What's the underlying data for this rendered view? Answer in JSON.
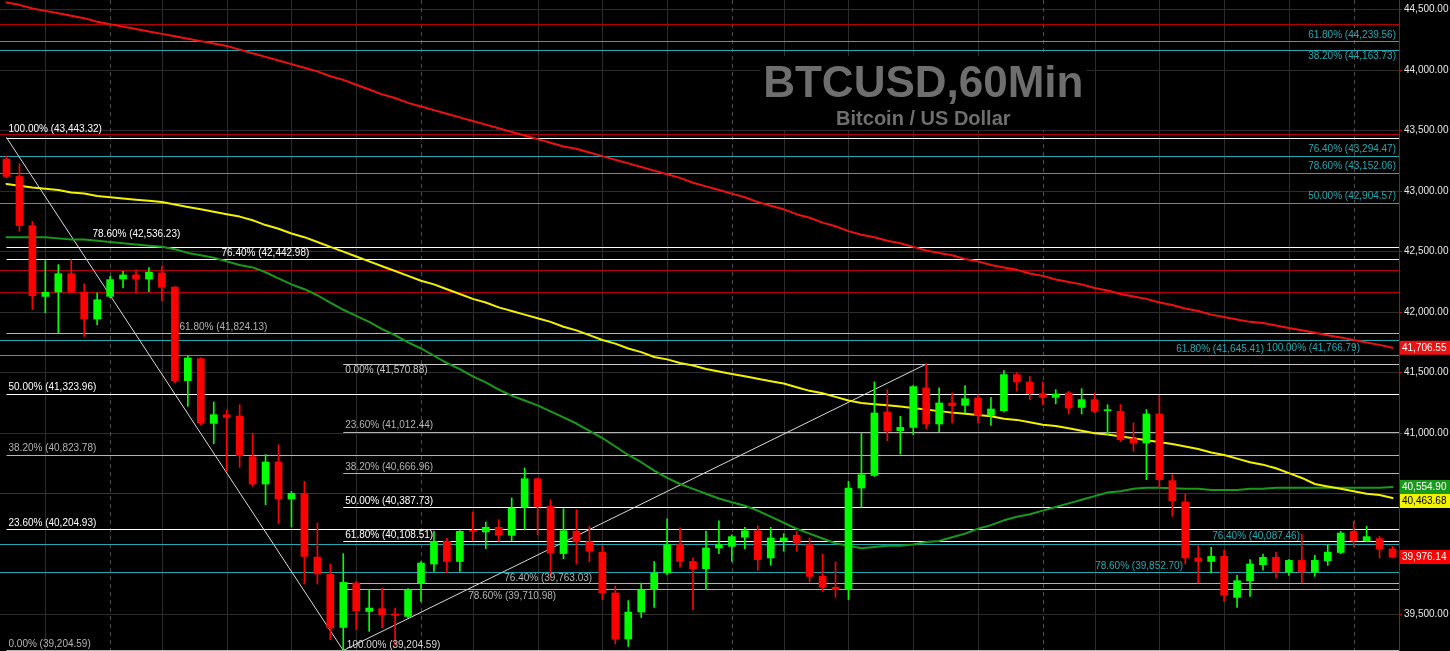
{
  "chart_data": {
    "type": "candlestick",
    "title": "BTCUSD,60Min",
    "subtitle": "Bitcoin / US Dollar",
    "categories": [
      null,
      null,
      null,
      null,
      null,
      null,
      null,
      null,
      null,
      null,
      null,
      null,
      null,
      null,
      null,
      null,
      null,
      null,
      null,
      null,
      null,
      null,
      null,
      null,
      null,
      null,
      null,
      null,
      null,
      null,
      null,
      null,
      null,
      null,
      null,
      null,
      null,
      null,
      null,
      null,
      null,
      null,
      null,
      null,
      null,
      null,
      null,
      null,
      null,
      null,
      null,
      null,
      null,
      null,
      null,
      null,
      null,
      null,
      null,
      null,
      null,
      null,
      null,
      null,
      null,
      null,
      null,
      null,
      null,
      null,
      null,
      null,
      null,
      null,
      null,
      null,
      null,
      null,
      null,
      null,
      null,
      null,
      null,
      null,
      null,
      null,
      null,
      null,
      null,
      null,
      null,
      null,
      null,
      null,
      null,
      null,
      null,
      null,
      null,
      null,
      null,
      null,
      null,
      null,
      null,
      null,
      null,
      null
    ],
    "ohlc": [
      [
        43266,
        43290,
        43110,
        43122
      ],
      [
        43122,
        43227,
        42668,
        42715
      ],
      [
        42715,
        42751,
        42021,
        42136
      ],
      [
        42131,
        42426,
        41996,
        42164
      ],
      [
        42167,
        42393,
        41830,
        42318
      ],
      [
        42318,
        42434,
        42161,
        42167
      ],
      [
        42164,
        42233,
        41800,
        41944
      ],
      [
        41944,
        42159,
        41897,
        42103
      ],
      [
        42131,
        42296,
        42120,
        42269
      ],
      [
        42274,
        42337,
        42200,
        42308
      ],
      [
        42308,
        42351,
        42164,
        42274
      ],
      [
        42274,
        42368,
        42170,
        42332
      ],
      [
        42324,
        42379,
        42095,
        42208
      ],
      [
        42208,
        42211,
        41418,
        41434
      ],
      [
        41434,
        41641,
        41222,
        41622
      ],
      [
        41616,
        41624,
        41070,
        41084
      ],
      [
        41081,
        41258,
        40913,
        41153
      ],
      [
        41153,
        41194,
        40685,
        41131
      ],
      [
        41142,
        41236,
        40718,
        40814
      ],
      [
        40806,
        41000,
        40561,
        40580
      ],
      [
        40580,
        40823,
        40409,
        40762
      ],
      [
        40762,
        40905,
        40252,
        40456
      ],
      [
        40456,
        40519,
        40225,
        40503
      ],
      [
        40503,
        40602,
        39754,
        39982
      ],
      [
        39976,
        40258,
        39754,
        39837
      ],
      [
        39834,
        39919,
        39294,
        39390
      ],
      [
        39395,
        40005,
        39204.59,
        39767
      ],
      [
        39762,
        39775,
        39376,
        39533
      ],
      [
        39527,
        39707,
        39362,
        39555
      ],
      [
        39550,
        39721,
        39390,
        39500
      ],
      [
        39506,
        39555,
        39252,
        39494
      ],
      [
        39486,
        39715,
        39475,
        39707
      ],
      [
        39762,
        39940,
        39610,
        39927
      ],
      [
        39919,
        40189,
        39858,
        40106
      ],
      [
        40106,
        40134,
        39845,
        39940
      ],
      [
        39940,
        40195,
        39858,
        40189
      ],
      [
        40197,
        40349,
        40112,
        40189
      ],
      [
        40184,
        40266,
        40046,
        40222
      ],
      [
        40222,
        40285,
        40106,
        40156
      ],
      [
        40156,
        40465,
        40112,
        40382
      ],
      [
        40387,
        40713,
        40203,
        40624
      ],
      [
        40624,
        40630,
        40161,
        40395
      ],
      [
        40395,
        40451,
        39804,
        40010
      ],
      [
        40005,
        40376,
        39963,
        40194
      ],
      [
        40189,
        40368,
        39919,
        40104
      ],
      [
        40104,
        40230,
        39936,
        40024
      ],
      [
        40017,
        40071,
        39624,
        39680
      ],
      [
        39680,
        39735,
        39258,
        39299
      ],
      [
        39299,
        39616,
        39238,
        39522
      ],
      [
        39522,
        39762,
        39477,
        39704
      ],
      [
        39707,
        39940,
        39560,
        39845
      ],
      [
        39845,
        40293,
        39831,
        40079
      ],
      [
        40079,
        40217,
        39892,
        39940
      ],
      [
        39940,
        39969,
        39541,
        39880
      ],
      [
        39880,
        40189,
        39707,
        40051
      ],
      [
        40051,
        40276,
        40005,
        40079
      ],
      [
        40065,
        40161,
        39940,
        40145
      ],
      [
        40140,
        40222,
        40046,
        40194
      ],
      [
        40194,
        40236,
        39867,
        39955
      ],
      [
        39969,
        40222,
        39907,
        40134
      ],
      [
        40112,
        40170,
        40024,
        40134
      ],
      [
        40156,
        40189,
        40024,
        40092
      ],
      [
        40079,
        40134,
        39771,
        39817
      ],
      [
        39817,
        40002,
        39693,
        39726
      ],
      [
        39726,
        39936,
        39643,
        39707
      ],
      [
        39707,
        40602,
        39624,
        40547
      ],
      [
        40547,
        40997,
        40387,
        40657
      ],
      [
        40651,
        41424,
        40643,
        41167
      ],
      [
        41175,
        41360,
        40938,
        41021
      ],
      [
        41021,
        41139,
        40828,
        41048
      ],
      [
        41048,
        41393,
        40988,
        41385
      ],
      [
        41374,
        41570.88,
        41037,
        41076
      ],
      [
        41076,
        41374,
        41010,
        41250
      ],
      [
        41250,
        41333,
        41084,
        41227
      ],
      [
        41230,
        41393,
        41167,
        41285
      ],
      [
        41291,
        41318,
        41084,
        41147
      ],
      [
        41147,
        41296,
        41065,
        41200
      ],
      [
        41186,
        41517,
        41175,
        41484
      ],
      [
        41484,
        41498,
        41349,
        41423
      ],
      [
        41423,
        41470,
        41277,
        41327
      ],
      [
        41327,
        41423,
        41236,
        41296
      ],
      [
        41296,
        41360,
        41242,
        41324
      ],
      [
        41333,
        41346,
        41159,
        41208
      ],
      [
        41213,
        41368,
        41159,
        41277
      ],
      [
        41277,
        41333,
        41167,
        41180
      ],
      [
        41186,
        41236,
        40988,
        41192
      ],
      [
        41180,
        41236,
        40930,
        40946
      ],
      [
        40955,
        41084,
        40850,
        40919
      ],
      [
        40919,
        41196,
        40616,
        41159
      ],
      [
        41159,
        41313,
        40547,
        40616
      ],
      [
        40608,
        40657,
        40313,
        40442
      ],
      [
        40432,
        40498,
        39919,
        39969
      ],
      [
        39969,
        40071,
        39762,
        39940
      ],
      [
        39940,
        40057,
        39845,
        39982
      ],
      [
        39982,
        40032,
        39610,
        39660
      ],
      [
        39643,
        39825,
        39560,
        39781
      ],
      [
        39781,
        39955,
        39652,
        39919
      ],
      [
        39913,
        40002,
        39867,
        39974
      ],
      [
        39974,
        40017,
        39804,
        39853
      ],
      [
        39853,
        39955,
        39825,
        39949
      ],
      [
        39949,
        40165,
        39762,
        39853
      ],
      [
        39853,
        39991,
        39817,
        39949
      ],
      [
        39946,
        40079,
        39907,
        40017
      ],
      [
        40014,
        40189,
        40005,
        40175
      ],
      [
        40189,
        40271,
        40065,
        40112
      ],
      [
        40112,
        40230,
        40106,
        40145
      ],
      [
        40128,
        40147,
        39969,
        40043
      ],
      [
        40043,
        40065,
        39969,
        39976.14
      ]
    ],
    "colors": [
      "#ff0000",
      "#ff0000",
      "#ff0000",
      "#00ff00",
      "#00ff00",
      "#ff0000",
      "#ff0000",
      "#00ff00",
      "#00ff00",
      "#00ff00",
      "#ff0000",
      "#00ff00",
      "#ff0000",
      "#ff0000",
      "#00ff00",
      "#ff0000",
      "#00ff00",
      "#ff0000",
      "#ff0000",
      "#ff0000",
      "#00ff00",
      "#ff0000",
      "#00ff00",
      "#ff0000",
      "#ff0000",
      "#ff0000",
      "#00ff00",
      "#ff0000",
      "#00ff00",
      "#ff0000",
      "#ff0000",
      "#00ff00",
      "#00ff00",
      "#00ff00",
      "#ff0000",
      "#00ff00",
      "#ff0000",
      "#00ff00",
      "#ff0000",
      "#00ff00",
      "#00ff00",
      "#ff0000",
      "#ff0000",
      "#00ff00",
      "#ff0000",
      "#ff0000",
      "#ff0000",
      "#ff0000",
      "#00ff00",
      "#00ff00",
      "#00ff00",
      "#00ff00",
      "#ff0000",
      "#ff0000",
      "#00ff00",
      "#00ff00",
      "#00ff00",
      "#00ff00",
      "#ff0000",
      "#00ff00",
      "#00ff00",
      "#ff0000",
      "#ff0000",
      "#ff0000",
      "#ff0000",
      "#00ff00",
      "#00ff00",
      "#00ff00",
      "#ff0000",
      "#00ff00",
      "#00ff00",
      "#ff0000",
      "#00ff00",
      "#ff0000",
      "#00ff00",
      "#ff0000",
      "#00ff00",
      "#00ff00",
      "#ff0000",
      "#ff0000",
      "#ff0000",
      "#00ff00",
      "#ff0000",
      "#00ff00",
      "#ff0000",
      "#00ff00",
      "#ff0000",
      "#ff0000",
      "#00ff00",
      "#ff0000",
      "#ff0000",
      "#ff0000",
      "#ff0000",
      "#00ff00",
      "#ff0000",
      "#00ff00",
      "#00ff00",
      "#00ff00",
      "#ff0000",
      "#00ff00",
      "#ff0000",
      "#00ff00",
      "#00ff00",
      "#00ff00",
      "#ff0000",
      "#00ff00",
      "#ff0000",
      "#ff0000"
    ],
    "value_labels": [
      null,
      null,
      null,
      null,
      null,
      null,
      null,
      null,
      null,
      null,
      null,
      null,
      null,
      null,
      null,
      null,
      null,
      null,
      null,
      null,
      null,
      null,
      null,
      null,
      null,
      null,
      null,
      null,
      null,
      null,
      null,
      null,
      null,
      null,
      null,
      null,
      null,
      null,
      null,
      null,
      null,
      null,
      null,
      null,
      null,
      null,
      null,
      null,
      null,
      null,
      null,
      null,
      null,
      null,
      null,
      null,
      null,
      null,
      null,
      null,
      null,
      null,
      null,
      null,
      null,
      null,
      null,
      null,
      null,
      null,
      null,
      null,
      null,
      null,
      null,
      null,
      null,
      null,
      null,
      null,
      null,
      null,
      null,
      null,
      null,
      null,
      null,
      null,
      null,
      null,
      null,
      null,
      null,
      null,
      null,
      null,
      null,
      null,
      null,
      null,
      null,
      null,
      null,
      null,
      null,
      null,
      null,
      "39,976.14"
    ],
    "series": [
      {
        "type": "line",
        "color": "#ee1111",
        "values": [
          44560,
          44540,
          44510,
          44490,
          44470,
          44450,
          44430,
          44400,
          44380,
          44360,
          44340,
          44320,
          44300,
          44280,
          44260,
          44240,
          44220,
          44200,
          44170,
          44140,
          44110,
          44080,
          44050,
          44020,
          43990,
          43950,
          43920,
          43880,
          43840,
          43800,
          43770,
          43730,
          43700,
          43670,
          43640,
          43610,
          43580,
          43550,
          43520,
          43490,
          43460,
          43430,
          43400,
          43370,
          43350,
          43320,
          43290,
          43260,
          43230,
          43200,
          43170,
          43140,
          43110,
          43070,
          43040,
          43010,
          42980,
          42950,
          42910,
          42880,
          42850,
          42810,
          42780,
          42740,
          42710,
          42670,
          42640,
          42620,
          42590,
          42570,
          42540,
          42510,
          42490,
          42470,
          42440,
          42420,
          42390,
          42370,
          42350,
          42320,
          42300,
          42270,
          42250,
          42230,
          42200,
          42180,
          42150,
          42130,
          42110,
          42080,
          42060,
          42030,
          42010,
          41980,
          41960,
          41940,
          41920,
          41910,
          41890,
          41870,
          41850,
          41830,
          41810,
          41790,
          41770,
          41750,
          41730,
          41706.55
        ],
        "value_labels": [
          null,
          null,
          null,
          null,
          null,
          null,
          null,
          null,
          null,
          null,
          null,
          null,
          null,
          null,
          null,
          null,
          null,
          null,
          null,
          null,
          null,
          null,
          null,
          null,
          null,
          null,
          null,
          null,
          null,
          null,
          null,
          null,
          null,
          null,
          null,
          null,
          null,
          null,
          null,
          null,
          null,
          null,
          null,
          null,
          null,
          null,
          null,
          null,
          null,
          null,
          null,
          null,
          null,
          null,
          null,
          null,
          null,
          null,
          null,
          null,
          null,
          null,
          null,
          null,
          null,
          null,
          null,
          null,
          null,
          null,
          null,
          null,
          null,
          null,
          null,
          null,
          null,
          null,
          null,
          null,
          null,
          null,
          null,
          null,
          null,
          null,
          null,
          null,
          null,
          null,
          null,
          null,
          null,
          null,
          null,
          null,
          null,
          null,
          null,
          null,
          null,
          null,
          null,
          null,
          null,
          null,
          null,
          "41,706.55"
        ]
      },
      {
        "type": "line",
        "color": "#f2f200",
        "values": [
          43060,
          null,
          43030,
          43020,
          43010,
          42990,
          42980,
          42960,
          42950,
          42940,
          42930,
          42920,
          42910,
          42890,
          42870,
          42850,
          42830,
          42810,
          42790,
          42760,
          42720,
          42690,
          42650,
          42620,
          42580,
          42540,
          42500,
          42460,
          42420,
          42380,
          42340,
          42300,
          42260,
          42230,
          42190,
          42150,
          42110,
          42080,
          42040,
          42010,
          41980,
          41950,
          41920,
          41880,
          41850,
          41810,
          41770,
          41740,
          41700,
          41670,
          41630,
          41610,
          41580,
          41560,
          41530,
          41510,
          41490,
          41470,
          41450,
          41430,
          41410,
          41380,
          41350,
          41330,
          41300,
          41270,
          41250,
          41240,
          41230,
          41220,
          null,
          null,
          null,
          41170,
          41160,
          null,
          41140,
          41120,
          41110,
          41090,
          41070,
          41060,
          41040,
          41020,
          41000,
          40990,
          null,
          null,
          null,
          null,
          40910,
          40890,
          40870,
          40840,
          40820,
          40790,
          40760,
          40740,
          40710,
          40670,
          40630,
          40580,
          40560,
          40540,
          40520,
          40500,
          40490,
          40463.68
        ],
        "value_labels": [
          null,
          null,
          null,
          null,
          null,
          null,
          null,
          null,
          null,
          null,
          null,
          null,
          null,
          null,
          null,
          null,
          null,
          null,
          null,
          null,
          null,
          null,
          null,
          null,
          null,
          null,
          null,
          null,
          null,
          null,
          null,
          null,
          null,
          null,
          null,
          null,
          null,
          null,
          null,
          null,
          null,
          null,
          null,
          null,
          null,
          null,
          null,
          null,
          null,
          null,
          null,
          null,
          null,
          null,
          null,
          null,
          null,
          null,
          null,
          null,
          null,
          null,
          null,
          null,
          null,
          null,
          null,
          null,
          null,
          null,
          null,
          null,
          null,
          null,
          null,
          null,
          null,
          null,
          null,
          null,
          null,
          null,
          null,
          null,
          null,
          null,
          null,
          null,
          null,
          null,
          null,
          null,
          null,
          null,
          null,
          null,
          null,
          null,
          null,
          null,
          null,
          null,
          null,
          null,
          null,
          null,
          null,
          "40,463.68"
        ]
      },
      {
        "type": "line",
        "color": "#1a9a1a",
        "values": [
          42620,
          42620,
          null,
          42620,
          42610,
          42600,
          42600,
          42590,
          42580,
          42570,
          42560,
          42550,
          42540,
          42520,
          42490,
          42470,
          42450,
          42420,
          42390,
          42370,
          42330,
          42280,
          42230,
          42190,
          42140,
          42080,
          42020,
          41970,
          41920,
          41860,
          41810,
          41750,
          41700,
          41640,
          41580,
          41530,
          41470,
          41420,
          41360,
          41310,
          41270,
          41230,
          41180,
          41130,
          41080,
          41020,
          40960,
          40890,
          40820,
          40760,
          40690,
          40630,
          40580,
          40540,
          40500,
          40460,
          40430,
          40400,
          40360,
          40310,
          40260,
          40210,
          40170,
          40130,
          40090,
          null,
          40050,
          40060,
          40070,
          40070,
          40080,
          40100,
          40110,
          40140,
          40170,
          40210,
          40240,
          40280,
          40310,
          40330,
          40360,
          40390,
          40420,
          40450,
          40480,
          40510,
          40520,
          40540,
          40550,
          40550,
          null,
          40540,
          40540,
          40530,
          40530,
          40530,
          40540,
          40540,
          40550,
          40550,
          40550,
          40550,
          40550,
          40550,
          40550,
          40550,
          40550,
          40554.9
        ],
        "value_labels": [
          null,
          null,
          null,
          null,
          null,
          null,
          null,
          null,
          null,
          null,
          null,
          null,
          null,
          null,
          null,
          null,
          null,
          null,
          null,
          null,
          null,
          null,
          null,
          null,
          null,
          null,
          null,
          null,
          null,
          null,
          null,
          null,
          null,
          null,
          null,
          null,
          null,
          null,
          null,
          null,
          null,
          null,
          null,
          null,
          null,
          null,
          null,
          null,
          null,
          null,
          null,
          null,
          null,
          null,
          null,
          null,
          null,
          null,
          null,
          null,
          null,
          null,
          null,
          null,
          null,
          null,
          null,
          null,
          null,
          null,
          null,
          null,
          null,
          null,
          null,
          null,
          null,
          null,
          null,
          null,
          null,
          null,
          null,
          null,
          null,
          null,
          null,
          null,
          null,
          null,
          null,
          null,
          null,
          null,
          null,
          null,
          null,
          null,
          null,
          null,
          null,
          null,
          null,
          null,
          null,
          null,
          null,
          "40,554.90"
        ]
      },
      {
        "type": "line",
        "color": "#d8d8d8",
        "values": [
          43443.32,
          null,
          null,
          null,
          null,
          null,
          null,
          null,
          null,
          null,
          null,
          null,
          null,
          null,
          null,
          null,
          null,
          null,
          null,
          null,
          null,
          null,
          null,
          null,
          null,
          null,
          39204.59,
          null,
          null,
          null,
          null,
          null,
          null,
          null,
          null,
          null,
          null,
          null,
          null,
          null,
          null,
          null,
          null,
          null,
          null,
          null,
          null,
          null,
          null,
          null,
          null,
          null,
          null,
          null,
          null,
          null,
          null,
          null,
          null,
          null,
          null,
          null,
          null,
          null,
          null,
          null,
          null,
          null,
          null,
          null,
          null,
          41570.88,
          null,
          null,
          null,
          null,
          null,
          null,
          null,
          null,
          null,
          null,
          null,
          null,
          null,
          null,
          null,
          null,
          null,
          null,
          null,
          null,
          null,
          null,
          null,
          null,
          null,
          null,
          null,
          null,
          null,
          null,
          null,
          null,
          null,
          null,
          null,
          null
        ],
        "value_labels": [
          null,
          null,
          null,
          null,
          null,
          null,
          null,
          null,
          null,
          null,
          null,
          null,
          null,
          null,
          null,
          null,
          null,
          null,
          null,
          null,
          null,
          null,
          null,
          null,
          null,
          null,
          "100.00% (39,204.59)",
          null,
          null,
          null,
          null,
          null,
          null,
          null,
          null,
          null,
          null,
          null,
          null,
          null,
          null,
          null,
          null,
          null,
          null,
          null,
          null,
          null,
          null,
          null,
          null,
          null,
          null,
          null,
          null,
          null,
          null,
          null,
          null,
          null,
          null,
          null,
          null,
          null,
          null,
          null,
          null,
          null,
          null,
          null,
          null,
          null,
          null,
          null,
          null,
          null,
          null,
          null,
          null,
          null,
          null,
          null,
          null,
          null,
          null,
          null,
          null,
          null,
          null,
          null,
          null,
          null,
          null,
          null,
          null,
          null,
          null,
          null,
          null,
          null,
          null,
          null,
          null,
          null,
          null,
          null,
          null,
          null
        ]
      }
    ],
    "ylim": [
      39200,
      44580
    ],
    "yticks": [
      {
        "value": 39500,
        "label": "39,500.00"
      },
      {
        "value": 41000,
        "label": "41,000.00"
      },
      {
        "value": 41500,
        "label": "41,500.00"
      },
      {
        "value": 42000,
        "label": "42,000.00"
      },
      {
        "value": 42500,
        "label": "42,500.00"
      },
      {
        "value": 43000,
        "label": "43,000.00"
      },
      {
        "value": 43500,
        "label": "43,500.00"
      },
      {
        "value": 44000,
        "label": "44,000.00"
      },
      {
        "value": 44500,
        "label": "44,500.00"
      }
    ],
    "grid": true,
    "ref_lines": [
      {
        "axis": "y",
        "value": 43443.32,
        "label": "100.00% (43,443.32)",
        "color": "#ffffff"
      },
      {
        "axis": "y",
        "value": 42536.23,
        "label": "78.60% (42,536.23)",
        "color": "#ffffff"
      },
      {
        "axis": "y",
        "value": 42442.98,
        "label": "76.40% (42,442.98)",
        "color": "#ffffff"
      },
      {
        "axis": "y",
        "value": 41824.13,
        "label": "61.80% (41,824.13)",
        "color": "#b4b4b4"
      },
      {
        "axis": "y",
        "value": 41323.96,
        "label": "50.00% (41,323.96)",
        "color": "#ffffff"
      },
      {
        "axis": "y",
        "value": 40823.78,
        "label": "38.20% (40,823.78)",
        "color": "#b4b4b4"
      },
      {
        "axis": "y",
        "value": 40204.93,
        "label": "23.60% (40,204.93)",
        "color": "#ffffff"
      },
      {
        "axis": "y",
        "value": 39204.59,
        "label": "0.00% (39,204.59)",
        "color": "#b4b4b4"
      },
      {
        "axis": "y",
        "value": 41570.88,
        "label": "0.00% (41,570.88)",
        "color": "#c8c8c8"
      },
      {
        "axis": "y",
        "value": 41012.44,
        "label": "23.60% (41,012.44)",
        "color": "#b4b4b4"
      },
      {
        "axis": "y",
        "value": 40666.96,
        "label": "38.20% (40,666.96)",
        "color": "#b4b4b4"
      },
      {
        "axis": "y",
        "value": 40387.73,
        "label": "50.00% (40,387.73)",
        "color": "#ffffff"
      },
      {
        "axis": "y",
        "value": 40108.51,
        "label": "61.80% (40,108.51)",
        "color": "#ffffff"
      },
      {
        "axis": "y",
        "value": 39763.03,
        "label": "76.40% (39,763.03)",
        "color": "#b4b4b4"
      },
      {
        "axis": "y",
        "value": 39710.98,
        "label": "78.60% (39,710.98)",
        "color": "#b4b4b4"
      },
      {
        "axis": "y",
        "value": 44239.56,
        "label": "61.80% (44,239.56)",
        "color": "#22aab4"
      },
      {
        "axis": "y",
        "value": 44163.73,
        "label": "38.20% (44,163.73)",
        "color": "#22aab4"
      },
      {
        "axis": "y",
        "value": 43294.47,
        "label": "76.40% (43,294.47)",
        "color": "#22aab4"
      },
      {
        "axis": "y",
        "value": 43152.06,
        "label": "78.60% (43,152.06)",
        "color": "#22aab4"
      },
      {
        "axis": "y",
        "value": 42904.57,
        "label": "50.00% (42,904.57)",
        "color": "#22aab4"
      },
      {
        "axis": "y",
        "value": 41766.79,
        "label": "100.00% (41,766.79)",
        "color": "#22aab4"
      },
      {
        "axis": "y",
        "value": 41645.41,
        "label": "61.80% (41,645.41)",
        "color": "#22aab4"
      },
      {
        "axis": "y",
        "value": 40087.46,
        "label": "76.40% (40,087.46)",
        "color": "#22aab4"
      },
      {
        "axis": "y",
        "value": 39852.7,
        "label": "78.60% (39,852.70)",
        "color": "#22aab4"
      },
      {
        "axis": "y",
        "value": 44380,
        "color": "#b40000"
      },
      {
        "axis": "y",
        "value": 43470,
        "color": "#b40000"
      },
      {
        "axis": "y",
        "value": 42345,
        "color": "#b40000"
      },
      {
        "axis": "y",
        "value": 42165,
        "color": "#b40000"
      },
      {
        "axis": "y",
        "value": 40505,
        "color": "#b40000"
      }
    ]
  }
}
